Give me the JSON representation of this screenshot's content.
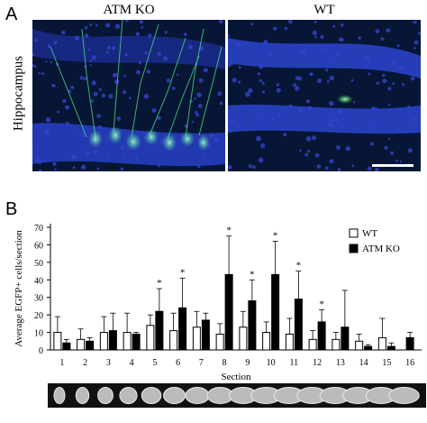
{
  "panel_a": {
    "letter": "A",
    "left_title": "ATM KO",
    "right_title": "WT",
    "side_label": "Hippocampus"
  },
  "panel_b": {
    "letter": "B"
  },
  "colors": {
    "wt_fill": "#ffffff",
    "atm_fill": "#000000",
    "nuclei": "#3344cc",
    "egfp": "#44ee99",
    "background_tissue": "#0a1a3a"
  },
  "chart_data": {
    "type": "bar",
    "ylabel": "Average EGFP+ cells/section",
    "xlabel": "Section",
    "ylim": [
      0,
      70
    ],
    "yticks": [
      0,
      10,
      20,
      30,
      40,
      50,
      60,
      70
    ],
    "categories": [
      "1",
      "2",
      "3",
      "4",
      "5",
      "6",
      "7",
      "8",
      "9",
      "10",
      "11",
      "12",
      "13",
      "14",
      "15",
      "16"
    ],
    "legend_position": "top-right",
    "series": [
      {
        "name": "WT",
        "color": "#ffffff",
        "values": [
          10,
          6,
          10,
          10,
          14,
          11,
          13,
          9,
          13,
          10,
          9,
          6,
          6,
          5,
          7,
          null
        ],
        "error": [
          9,
          6,
          9,
          11,
          6,
          10,
          9,
          6,
          9,
          6,
          9,
          5,
          4,
          4,
          11,
          null
        ]
      },
      {
        "name": "ATM KO",
        "color": "#000000",
        "values": [
          4,
          5,
          11,
          9,
          22,
          24,
          17,
          43,
          28,
          43,
          29,
          16,
          13,
          2,
          2,
          7
        ],
        "error": [
          2,
          2,
          10,
          1,
          13,
          17,
          4,
          22,
          12,
          19,
          16,
          7,
          21,
          1,
          2,
          3
        ]
      }
    ],
    "significance": [
      "",
      "",
      "",
      "",
      "*",
      "*",
      "",
      "*",
      "*",
      "*",
      "*",
      "*",
      "",
      "",
      "",
      ""
    ]
  }
}
